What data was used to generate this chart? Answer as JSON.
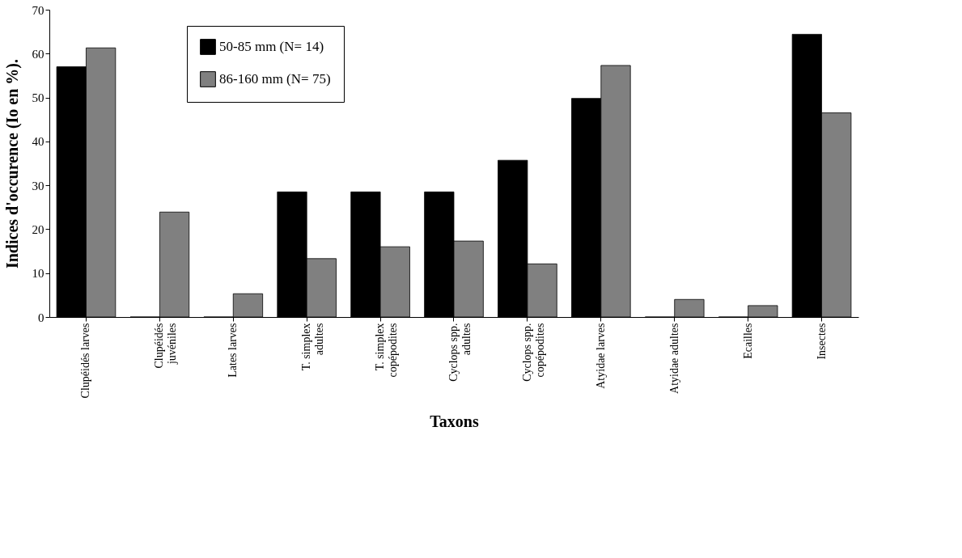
{
  "chart_data": {
    "type": "bar",
    "xlabel": "Taxons",
    "ylabel": "Indices d'occurence (Io en %).",
    "categories": [
      "Clupéidés larves",
      "Clupéidés\njuvéniles",
      "Lates larves",
      "T. simplex\nadultes",
      "T. simplex\ncopépodites",
      "Cyclops spp.\nadultes",
      "Cyclops spp.\ncopépodites",
      "Atyidae larves",
      "Atyidae adultes",
      "Ecailles",
      "Insectes"
    ],
    "series": [
      {
        "name": "50-85 mm (N= 14)",
        "color": "#000000",
        "values": [
          57.0,
          0,
          0,
          28.5,
          28.5,
          28.5,
          35.7,
          49.8,
          0,
          0,
          64.4
        ]
      },
      {
        "name": "86-160 mm (N= 75)",
        "color": "#808080",
        "values": [
          61.3,
          23.9,
          5.3,
          13.3,
          16.0,
          17.3,
          12.1,
          57.3,
          4.0,
          2.6,
          46.5
        ]
      }
    ],
    "ylim": [
      0,
      70
    ],
    "yticks": [
      0,
      10,
      20,
      30,
      40,
      50,
      60,
      70
    ],
    "grid": false,
    "legend": "top left"
  }
}
